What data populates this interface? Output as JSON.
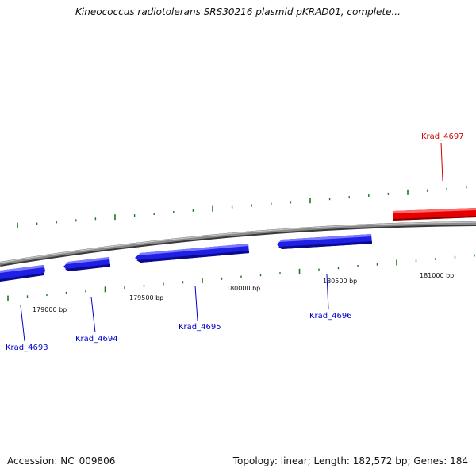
{
  "title": "Kineococcus radiotolerans SRS30216 plasmid pKRAD01, complete...",
  "accession": "Accession: NC_009806",
  "summary": "Topology: linear; Length: 182,572 bp; Genes: 184",
  "colors": {
    "backbone": "#7d7d7d",
    "forward_gene": "#e60000",
    "reverse_gene": "#1f1fe6",
    "tick": "#1c7a1c",
    "label_forward": "#cc0000",
    "label_reverse": "#0000cc"
  },
  "scale_labels": [
    "179000 bp",
    "179500 bp",
    "180000 bp",
    "180500 bp",
    "181000 bp"
  ],
  "genes": [
    {
      "name": "Krad_4693",
      "strand": "reverse"
    },
    {
      "name": "Krad_4694",
      "strand": "reverse"
    },
    {
      "name": "Krad_4695",
      "strand": "reverse"
    },
    {
      "name": "Krad_4696",
      "strand": "reverse"
    },
    {
      "name": "Krad_4697",
      "strand": "forward"
    }
  ]
}
